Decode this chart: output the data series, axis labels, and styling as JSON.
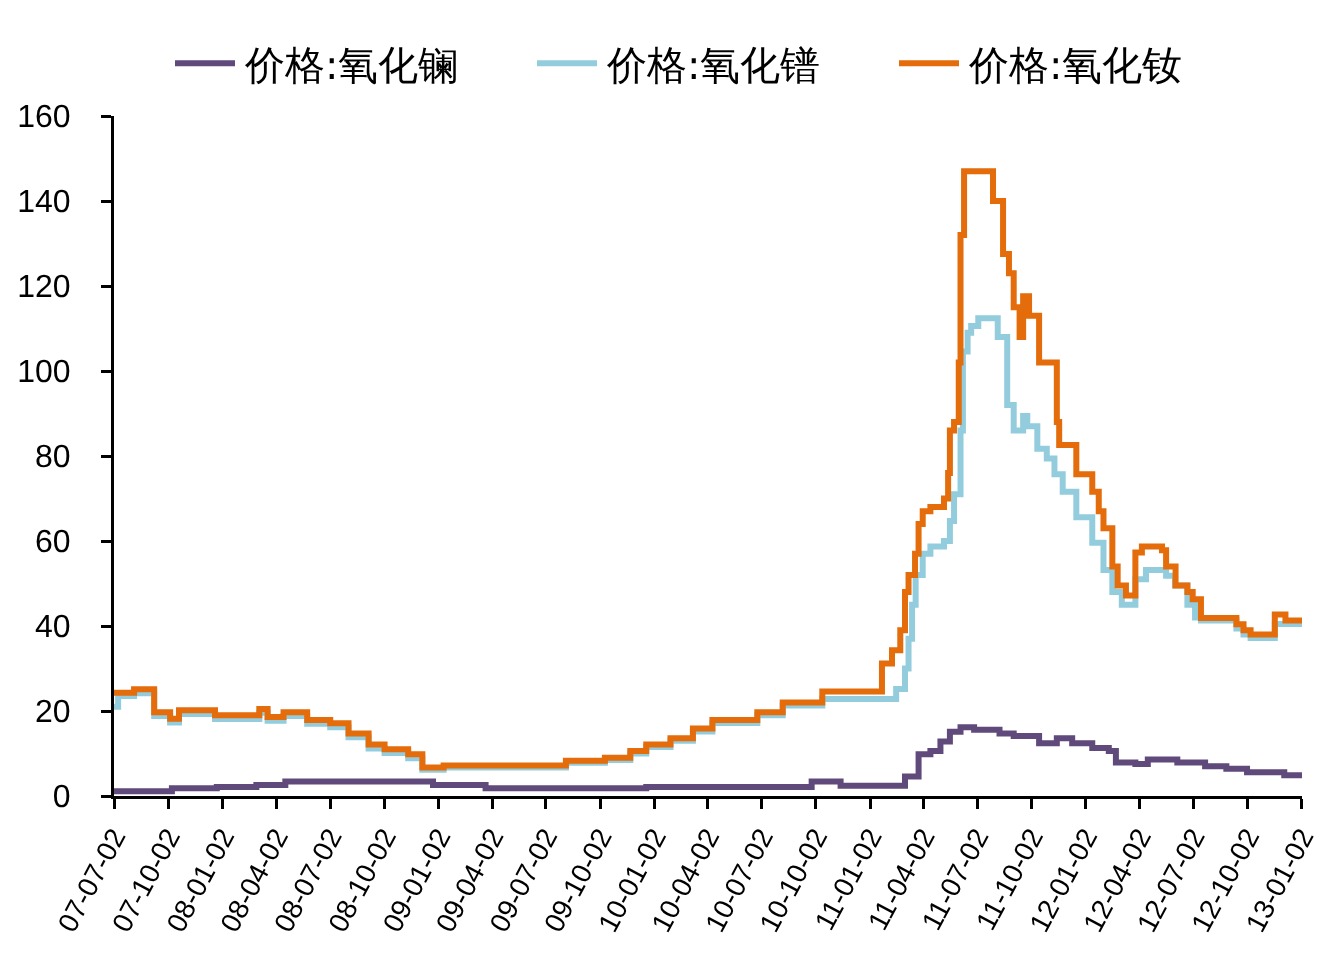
{
  "chart_data": {
    "type": "step",
    "legend": "top",
    "grid": false,
    "xlim": [
      "2007-07-02",
      "2013-01-02"
    ],
    "xticks": [
      {
        "value": "2007-07-02",
        "label": "07-07-02"
      },
      {
        "value": "2007-10-02",
        "label": "07-10-02"
      },
      {
        "value": "2008-01-02",
        "label": "08-01-02"
      },
      {
        "value": "2008-04-02",
        "label": "08-04-02"
      },
      {
        "value": "2008-07-02",
        "label": "08-07-02"
      },
      {
        "value": "2008-10-02",
        "label": "08-10-02"
      },
      {
        "value": "2009-01-02",
        "label": "09-01-02"
      },
      {
        "value": "2009-04-02",
        "label": "09-04-02"
      },
      {
        "value": "2009-07-02",
        "label": "09-07-02"
      },
      {
        "value": "2009-10-02",
        "label": "09-10-02"
      },
      {
        "value": "2010-01-02",
        "label": "10-01-02"
      },
      {
        "value": "2010-04-02",
        "label": "10-04-02"
      },
      {
        "value": "2010-07-02",
        "label": "10-07-02"
      },
      {
        "value": "2010-10-02",
        "label": "10-10-02"
      },
      {
        "value": "2011-01-02",
        "label": "11-01-02"
      },
      {
        "value": "2011-04-02",
        "label": "11-04-02"
      },
      {
        "value": "2011-07-02",
        "label": "11-07-02"
      },
      {
        "value": "2011-10-02",
        "label": "11-10-02"
      },
      {
        "value": "2012-01-02",
        "label": "12-01-02"
      },
      {
        "value": "2012-04-02",
        "label": "12-04-02"
      },
      {
        "value": "2012-07-02",
        "label": "12-07-02"
      },
      {
        "value": "2012-10-02",
        "label": "12-10-02"
      },
      {
        "value": "2013-01-02",
        "label": "13-01-02"
      }
    ],
    "ylim": [
      0,
      160
    ],
    "yticks": [
      0,
      20,
      40,
      60,
      80,
      100,
      120,
      140,
      160
    ],
    "series": [
      {
        "name": "价格:氧化镧",
        "color": "#604a7b",
        "x": [
          "2007-07-02",
          "2007-10-08",
          "2007-12-23",
          "2008-02-28",
          "2008-04-17",
          "2008-12-23",
          "2009-03-22",
          "2009-12-19",
          "2010-09-25",
          "2010-11-13",
          "2011-03-02",
          "2011-03-25",
          "2011-04-14",
          "2011-05-01",
          "2011-05-17",
          "2011-06-04",
          "2011-06-27",
          "2011-08-09",
          "2011-09-02",
          "2011-10-15",
          "2011-11-14",
          "2011-12-10",
          "2012-01-13",
          "2012-02-10",
          "2012-02-22",
          "2012-03-26",
          "2012-04-16",
          "2012-06-05",
          "2012-07-22",
          "2012-08-27",
          "2012-10-01",
          "2012-12-03",
          "2013-01-02"
        ],
        "values": [
          1.1,
          1.8,
          2.1,
          2.6,
          3.4,
          2.6,
          1.8,
          2.1,
          3.4,
          2.4,
          4.6,
          9.8,
          10.6,
          12.8,
          15.1,
          16.2,
          15.6,
          14.7,
          14.1,
          12.4,
          13.6,
          12.4,
          11.3,
          10.6,
          7.9,
          7.5,
          8.6,
          7.9,
          7.0,
          6.4,
          5.6,
          4.9,
          4.9
        ]
      },
      {
        "name": "价格:氧化镨",
        "color": "#93cddd",
        "x": [
          "2007-07-02",
          "2007-07-09",
          "2007-08-05",
          "2007-09-08",
          "2007-10-05",
          "2007-10-20",
          "2007-12-20",
          "2008-03-04",
          "2008-03-18",
          "2008-04-14",
          "2008-05-24",
          "2008-07-02",
          "2008-08-02",
          "2008-09-05",
          "2008-10-02",
          "2008-11-11",
          "2008-12-05",
          "2009-01-10",
          "2009-08-05",
          "2009-10-10",
          "2009-11-22",
          "2009-12-19",
          "2010-01-29",
          "2010-03-08",
          "2010-04-10",
          "2010-06-25",
          "2010-08-07",
          "2010-10-13",
          "2011-02-15",
          "2011-03-02",
          "2011-03-08",
          "2011-03-14",
          "2011-03-20",
          "2011-04-01",
          "2011-04-14",
          "2011-05-07",
          "2011-05-17",
          "2011-05-24",
          "2011-06-04",
          "2011-06-08",
          "2011-06-16",
          "2011-06-22",
          "2011-07-04",
          "2011-08-06",
          "2011-08-22",
          "2011-09-02",
          "2011-09-18",
          "2011-09-25",
          "2011-10-12",
          "2011-10-28",
          "2011-11-10",
          "2011-11-24",
          "2011-12-17",
          "2012-01-13",
          "2012-02-01",
          "2012-02-16",
          "2012-03-03",
          "2012-03-26",
          "2012-04-13",
          "2012-05-17",
          "2012-06-01",
          "2012-06-22",
          "2012-07-05",
          "2012-07-15",
          "2012-09-13",
          "2012-09-25",
          "2012-10-07",
          "2012-11-17",
          "2013-01-02"
        ],
        "values": [
          21,
          23.5,
          24.2,
          18.8,
          17.3,
          19.3,
          18.1,
          19.6,
          17.7,
          18.8,
          17.0,
          16.2,
          13.8,
          11.2,
          10.1,
          8.9,
          6.2,
          6.7,
          7.8,
          8.5,
          10.0,
          11.5,
          13.0,
          15.2,
          17.2,
          19.0,
          21.3,
          22.8,
          25.2,
          30,
          37,
          45,
          52,
          57,
          58.7,
          60,
          64.7,
          71,
          86,
          104.6,
          109,
          110.6,
          112.4,
          108,
          92,
          86,
          89.4,
          87,
          81.7,
          79.4,
          75.7,
          71.6,
          65.6,
          59.6,
          53.2,
          48,
          45,
          51,
          53.2,
          51.8,
          49.5,
          45,
          42,
          41.3,
          39.4,
          38,
          37.2,
          40.5,
          40.5
        ]
      },
      {
        "name": "价格:氧化钕",
        "color": "#e46c0a",
        "x": [
          "2007-07-02",
          "2007-08-05",
          "2007-09-08",
          "2007-10-05",
          "2007-10-20",
          "2007-12-20",
          "2008-03-04",
          "2008-03-18",
          "2008-04-14",
          "2008-05-24",
          "2008-07-02",
          "2008-08-02",
          "2008-09-05",
          "2008-10-02",
          "2008-11-11",
          "2008-12-05",
          "2009-01-10",
          "2009-08-05",
          "2009-10-10",
          "2009-11-22",
          "2009-12-19",
          "2010-01-29",
          "2010-03-08",
          "2010-04-10",
          "2010-06-25",
          "2010-08-07",
          "2010-10-13",
          "2011-01-22",
          "2011-02-08",
          "2011-02-22",
          "2011-03-02",
          "2011-03-08",
          "2011-03-19",
          "2011-03-25",
          "2011-04-01",
          "2011-04-14",
          "2011-05-07",
          "2011-05-14",
          "2011-05-17",
          "2011-05-24",
          "2011-06-01",
          "2011-06-04",
          "2011-06-10",
          "2011-07-29",
          "2011-08-15",
          "2011-08-25",
          "2011-09-02",
          "2011-09-12",
          "2011-09-18",
          "2011-09-28",
          "2011-10-15",
          "2011-11-14",
          "2011-11-18",
          "2011-12-17",
          "2012-01-13",
          "2012-01-24",
          "2012-02-01",
          "2012-02-16",
          "2012-02-25",
          "2012-03-10",
          "2012-03-26",
          "2012-04-06",
          "2012-05-10",
          "2012-05-17",
          "2012-06-02",
          "2012-06-22",
          "2012-07-01",
          "2012-07-15",
          "2012-09-13",
          "2012-09-25",
          "2012-10-07",
          "2012-11-17",
          "2012-12-05",
          "2013-01-02"
        ],
        "values": [
          24.3,
          25.1,
          19.7,
          18.2,
          20.2,
          19.0,
          20.5,
          18.6,
          19.7,
          17.9,
          17.1,
          14.7,
          12.1,
          11.0,
          9.8,
          6.7,
          7.2,
          8.3,
          9.0,
          10.6,
          12.1,
          13.6,
          15.9,
          17.9,
          19.7,
          22.0,
          24.6,
          31.2,
          34.3,
          39,
          48,
          52,
          57,
          64,
          67,
          68,
          70,
          76,
          86,
          88,
          102,
          132,
          147,
          140,
          127.5,
          123,
          115,
          108,
          117.6,
          113,
          102,
          88,
          82.6,
          75.7,
          71.6,
          67,
          63,
          54,
          49.5,
          47.2,
          57.3,
          58.7,
          57.8,
          54,
          49.5,
          48,
          46.3,
          41.9,
          40.4,
          39,
          38,
          42.7,
          41.3,
          41.3
        ]
      }
    ]
  }
}
